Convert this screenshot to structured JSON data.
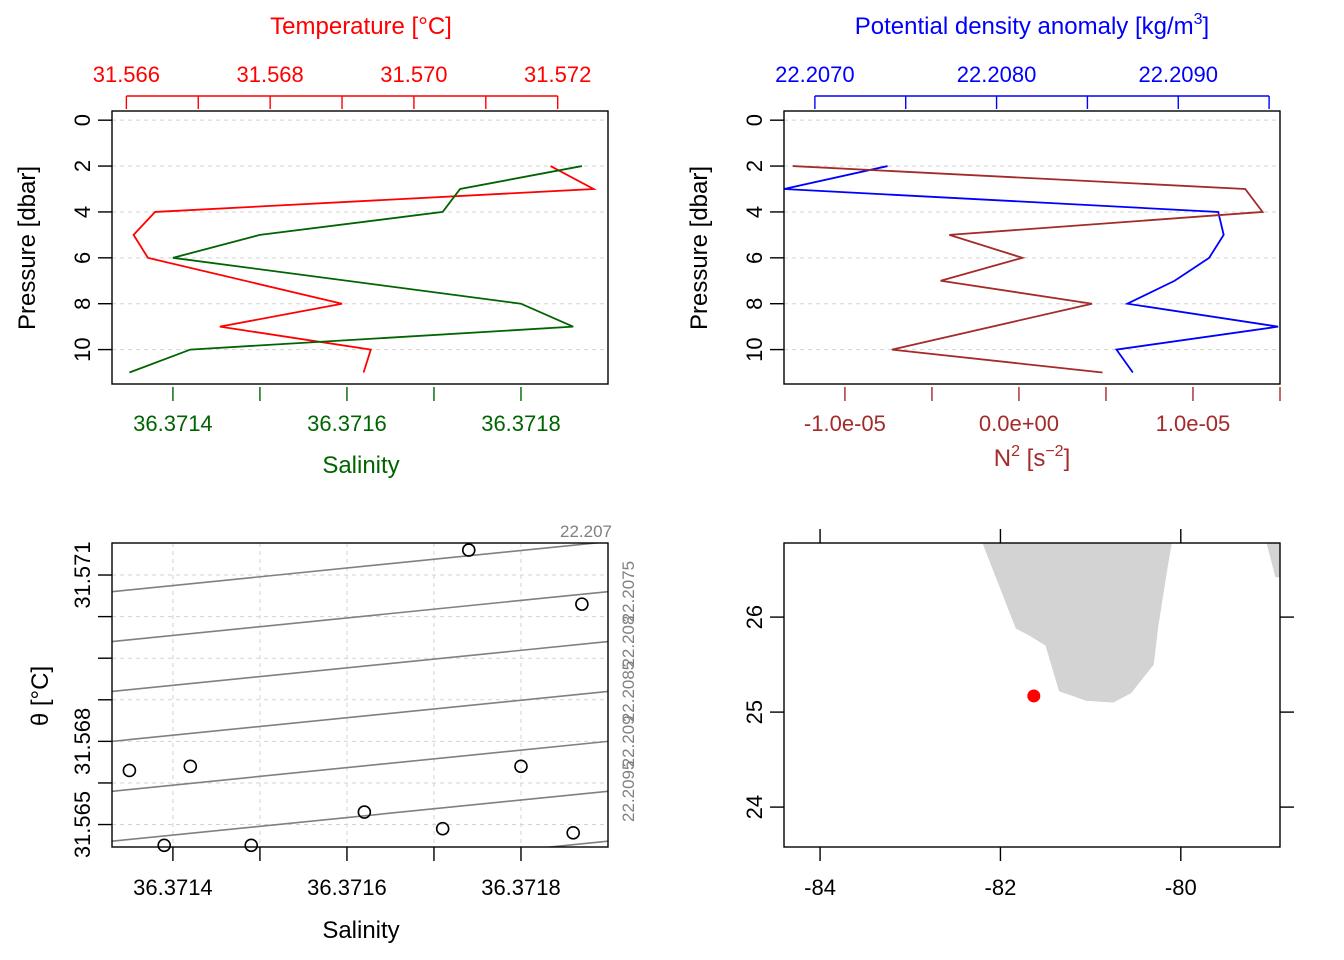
{
  "colors": {
    "temperature": "#ff0000",
    "salinity": "#006400",
    "density": "#0000ff",
    "n2": "#a52a2a",
    "isopycnal": "#808080",
    "land": "#d3d3d3",
    "station": "#ff0000",
    "grid": "#d3d3d3"
  },
  "chart_data": [
    {
      "panel": "temperature-salinity-profile",
      "type": "line",
      "title": "",
      "top_axis_label": "Temperature [°C]",
      "bottom_axis_label": "Salinity",
      "ylabel": "Pressure [dbar]",
      "top_ticks": [
        31.566,
        31.568,
        31.57,
        31.572
      ],
      "top_tick_labels": [
        "31.566",
        "31.568",
        "31.570",
        "31.572"
      ],
      "bottom_ticks": [
        36.3714,
        36.3716,
        36.3718
      ],
      "bottom_tick_labels": [
        "36.3714",
        "36.3716",
        "36.3718"
      ],
      "y_ticks": [
        0,
        2,
        4,
        6,
        8,
        10
      ],
      "ylim": [
        11.5,
        -0.4
      ],
      "temp_lim": [
        31.5658,
        31.5727
      ],
      "sal_lim": [
        36.37133,
        36.3719
      ],
      "grid": true,
      "series": [
        {
          "name": "Temperature [°C]",
          "axis": "top",
          "points": [
            [
              31.5719,
              2
            ],
            [
              31.5725,
              3
            ],
            [
              31.5664,
              4
            ],
            [
              31.5661,
              5
            ],
            [
              31.5663,
              6
            ],
            [
              31.569,
              8
            ],
            [
              31.5673,
              9
            ],
            [
              31.5694,
              10
            ],
            [
              31.5693,
              11
            ]
          ]
        },
        {
          "name": "Salinity",
          "axis": "bottom",
          "points": [
            [
              36.37187,
              2
            ],
            [
              36.37173,
              3
            ],
            [
              36.37171,
              4
            ],
            [
              36.3715,
              5
            ],
            [
              36.3714,
              6
            ],
            [
              36.3718,
              8
            ],
            [
              36.37186,
              9
            ],
            [
              36.37142,
              10
            ],
            [
              36.37135,
              11
            ]
          ]
        }
      ]
    },
    {
      "panel": "density-n2-profile",
      "type": "line",
      "title": "",
      "top_axis_label": "Potential density anomaly [kg/m",
      "top_axis_label_sup": "3",
      "top_axis_label_end": "]",
      "bottom_axis_label": "N",
      "bottom_axis_label_sup": "2",
      "bottom_axis_label_mid": " [s",
      "bottom_axis_label_sup2": "−2",
      "bottom_axis_label_end": "]",
      "ylabel": "Pressure [dbar]",
      "top_ticks": [
        22.207,
        22.2075,
        22.208,
        22.2085,
        22.209,
        22.2095
      ],
      "top_tick_labels": [
        "22.2070",
        "",
        "22.2080",
        "",
        "22.2090",
        ""
      ],
      "bottom_ticks": [
        -1e-05,
        -5e-06,
        0,
        5e-06,
        1e-05,
        1.5e-05
      ],
      "bottom_tick_labels": [
        "-1.0e-05",
        "",
        "0.0e+00",
        "",
        "1.0e-05",
        ""
      ],
      "y_ticks": [
        0,
        2,
        4,
        6,
        8,
        10
      ],
      "ylim": [
        11.5,
        -0.4
      ],
      "dens_lim": [
        22.20683,
        22.20956
      ],
      "n2_lim": [
        -1.35e-05,
        1.5e-05
      ],
      "grid": true,
      "series": [
        {
          "name": "Potential density anomaly [kg/m3]",
          "axis": "top",
          "points": [
            [
              22.2074,
              2
            ],
            [
              22.20683,
              3
            ],
            [
              22.20922,
              4
            ],
            [
              22.20925,
              5
            ],
            [
              22.20917,
              6
            ],
            [
              22.20898,
              7
            ],
            [
              22.20872,
              8
            ],
            [
              22.20955,
              9
            ],
            [
              22.20866,
              10
            ],
            [
              22.20875,
              11
            ]
          ]
        },
        {
          "name": "N2",
          "axis": "bottom",
          "points": [
            [
              -1.3e-05,
              2
            ],
            [
              1.3e-05,
              3
            ],
            [
              1.4e-05,
              4
            ],
            [
              -4e-06,
              5
            ],
            [
              2e-07,
              6
            ],
            [
              -4.5e-06,
              7
            ],
            [
              4.2e-06,
              8
            ],
            [
              -7.3e-06,
              10
            ],
            [
              4.8e-06,
              11
            ]
          ]
        }
      ]
    },
    {
      "panel": "theta-salinity-diagram",
      "type": "scatter",
      "title": "",
      "xlabel": "Salinity",
      "ylabel": "θ [°C]",
      "x_ticks": [
        36.3714,
        36.3716,
        36.3718
      ],
      "x_tick_labels": [
        "36.3714",
        "36.3716",
        "36.3718"
      ],
      "y_ticks": [
        31.565,
        31.566,
        31.567,
        31.568,
        31.569,
        31.57,
        31.571
      ],
      "y_tick_labels": [
        "31.565",
        "",
        "31.568",
        "",
        "",
        "",
        "31.571"
      ],
      "xlim": [
        36.37133,
        36.3719
      ],
      "ylim": [
        31.56446,
        31.57177
      ],
      "grid": true,
      "points": [
        [
          36.37174,
          31.5716
        ],
        [
          36.37187,
          31.5703
        ],
        [
          36.37135,
          31.5663
        ],
        [
          36.37142,
          31.5664
        ],
        [
          36.3718,
          31.5664
        ],
        [
          36.37162,
          31.5653
        ],
        [
          36.37171,
          31.5649
        ],
        [
          36.37186,
          31.5648
        ],
        [
          36.37139,
          31.5645
        ],
        [
          36.37149,
          31.5645
        ]
      ],
      "isopycnals": [
        {
          "label": "22.207",
          "y_left": 31.5706,
          "y_right": 31.5718
        },
        {
          "label": "22.2075",
          "y_left": 31.5694,
          "y_right": 31.5706
        },
        {
          "label": "22.208",
          "y_left": 31.5682,
          "y_right": 31.5694
        },
        {
          "label": "22.2085",
          "y_left": 31.567,
          "y_right": 31.5682
        },
        {
          "label": "22.209",
          "y_left": 31.5658,
          "y_right": 31.567
        },
        {
          "label": "22.2095",
          "y_left": 31.5646,
          "y_right": 31.5658
        },
        {
          "label": "",
          "y_left": 31.5634,
          "y_right": 31.5646
        }
      ]
    },
    {
      "panel": "station-map",
      "type": "map",
      "title": "",
      "x_ticks": [
        -84,
        -82,
        -80
      ],
      "x_tick_labels": [
        "-84",
        "-82",
        "-80"
      ],
      "y_ticks": [
        24,
        25,
        26
      ],
      "y_tick_labels": [
        "24",
        "25",
        "26"
      ],
      "xlim": [
        -84.4,
        -78.9
      ],
      "ylim": [
        23.58,
        26.78
      ],
      "station": [
        -81.63,
        25.17
      ],
      "land": [
        [
          [
            -82.2,
            26.78
          ],
          [
            -81.83,
            25.88
          ],
          [
            -81.67,
            25.8
          ],
          [
            -81.5,
            25.7
          ],
          [
            -81.35,
            25.22
          ],
          [
            -81.05,
            25.12
          ],
          [
            -80.75,
            25.1
          ],
          [
            -80.55,
            25.2
          ],
          [
            -80.3,
            25.5
          ],
          [
            -80.25,
            25.9
          ],
          [
            -80.15,
            26.5
          ],
          [
            -80.1,
            26.78
          ]
        ],
        [
          [
            -79.05,
            26.78
          ],
          [
            -78.95,
            26.42
          ],
          [
            -78.9,
            26.42
          ],
          [
            -78.9,
            26.78
          ]
        ]
      ]
    }
  ]
}
